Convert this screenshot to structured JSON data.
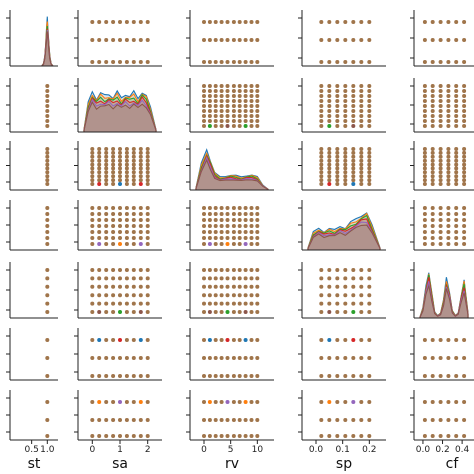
{
  "chart_data": {
    "type": "scatter",
    "variables": [
      "st",
      "sa",
      "rv",
      "sp",
      "cf"
    ],
    "xlabels": [
      "st",
      "sa",
      "rv",
      "sp",
      "cf"
    ],
    "x_ticks": {
      "st": [
        "0.5",
        "1.0"
      ],
      "sa": [
        "0",
        "1",
        "2"
      ],
      "rv": [
        "0",
        "5",
        "10"
      ],
      "sp": [
        "0.0",
        "0.1",
        "0.2"
      ],
      "cf": [
        "0.0",
        "0.2",
        "0.4"
      ]
    },
    "ranges": {
      "st": [
        0,
        1.15
      ],
      "sa": [
        -0.3,
        2.3
      ],
      "rv": [
        -1.5,
        12
      ],
      "sp": [
        -0.03,
        0.24
      ],
      "cf": [
        -0.03,
        0.46
      ]
    },
    "levels": {
      "st": [
        1.0
      ],
      "sa": [
        0,
        0.25,
        0.5,
        0.75,
        1.0,
        1.25,
        1.5,
        1.75,
        2.0
      ],
      "rv": [
        0,
        1.1,
        2.2,
        3.3,
        4.4,
        5.6,
        6.7,
        7.8,
        8.9,
        10
      ],
      "sp": [
        0.02,
        0.05,
        0.08,
        0.11,
        0.14,
        0.17,
        0.2
      ],
      "cf": [
        0.02,
        0.1,
        0.18,
        0.26,
        0.34,
        0.42
      ]
    },
    "series_colors": [
      "#1f77b4",
      "#ff7f0e",
      "#2ca02c",
      "#d62728",
      "#9467bd",
      "#8c564b"
    ],
    "point_color": "#a0754b",
    "density": {
      "st": {
        "x": [
          0.82,
          0.88,
          0.92,
          0.95,
          0.98,
          1.0,
          1.02,
          1.05,
          1.08,
          1.12,
          1.18
        ],
        "y": [
          0,
          0.05,
          0.2,
          0.45,
          0.8,
          0.95,
          0.8,
          0.45,
          0.2,
          0.05,
          0
        ]
      },
      "sa": {
        "x": [
          -0.3,
          -0.15,
          0,
          0.15,
          0.3,
          0.45,
          0.6,
          0.75,
          0.9,
          1.05,
          1.2,
          1.35,
          1.5,
          1.65,
          1.8,
          1.95,
          2.1,
          2.3
        ],
        "y": [
          0.05,
          0.6,
          0.85,
          0.7,
          0.8,
          0.75,
          0.8,
          0.72,
          0.82,
          0.7,
          0.8,
          0.74,
          0.82,
          0.7,
          0.85,
          0.75,
          0.5,
          0.05
        ]
      },
      "rv": {
        "x": [
          -1.5,
          -0.5,
          0.5,
          1.2,
          2,
          3,
          4,
          5,
          6,
          7,
          8,
          9,
          10,
          11,
          12
        ],
        "y": [
          0.05,
          0.6,
          0.95,
          0.7,
          0.4,
          0.3,
          0.32,
          0.35,
          0.33,
          0.3,
          0.34,
          0.35,
          0.3,
          0.12,
          0.02
        ]
      },
      "sp": {
        "x": [
          -0.03,
          -0.01,
          0.01,
          0.03,
          0.05,
          0.07,
          0.09,
          0.11,
          0.13,
          0.15,
          0.17,
          0.19,
          0.21,
          0.24
        ],
        "y": [
          0.05,
          0.4,
          0.5,
          0.42,
          0.48,
          0.45,
          0.55,
          0.5,
          0.62,
          0.7,
          0.8,
          0.85,
          0.55,
          0.05
        ]
      },
      "cf": {
        "x": [
          -0.03,
          0.0,
          0.03,
          0.06,
          0.09,
          0.12,
          0.15,
          0.18,
          0.21,
          0.24,
          0.27,
          0.3,
          0.33,
          0.36,
          0.39,
          0.42,
          0.46
        ],
        "y": [
          0.02,
          0.2,
          0.65,
          0.95,
          0.5,
          0.12,
          0.05,
          0.1,
          0.35,
          0.8,
          0.55,
          0.15,
          0.05,
          0.1,
          0.45,
          0.75,
          0.1
        ]
      }
    },
    "grid": false,
    "legend": "none"
  }
}
